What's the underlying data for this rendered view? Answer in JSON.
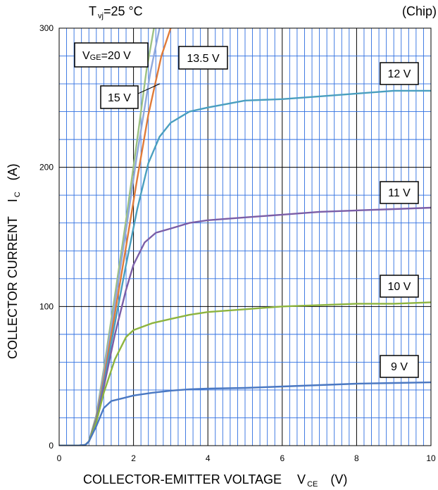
{
  "chart_data": {
    "type": "line",
    "title_left": "T vj =25 °C",
    "title_left_main": "T",
    "title_left_sub": "vj",
    "title_left_rest": "=25 °C",
    "title_right": "(Chip)",
    "xlabel": "COLLECTOR-EMITTER VOLTAGE",
    "xlabel_symbol": "V",
    "xlabel_symbol_sub": "CE",
    "xlabel_unit": "(V)",
    "ylabel": "COLLECTOR CURRENT",
    "ylabel_symbol": "I",
    "ylabel_symbol_sub": "C",
    "ylabel_unit": "(A)",
    "xlim": [
      0,
      10
    ],
    "ylim": [
      0,
      300
    ],
    "x_ticks": [
      "0",
      "2",
      "4",
      "6",
      "8",
      "10"
    ],
    "y_ticks": [
      "0",
      "100",
      "200",
      "300"
    ],
    "grid": true,
    "series": [
      {
        "name": "VGE=20 V",
        "color": "#9dc183",
        "points": [
          [
            0,
            0
          ],
          [
            0.5,
            0
          ],
          [
            0.7,
            0.5
          ],
          [
            0.8,
            3
          ],
          [
            1.0,
            22
          ],
          [
            1.2,
            55
          ],
          [
            1.5,
            108
          ],
          [
            1.8,
            162
          ],
          [
            2.1,
            220
          ],
          [
            2.35,
            270
          ],
          [
            2.55,
            300
          ]
        ]
      },
      {
        "name": "15 V",
        "color": "#8fa8dc",
        "points": [
          [
            0,
            0
          ],
          [
            0.5,
            0
          ],
          [
            0.7,
            0.5
          ],
          [
            0.8,
            3
          ],
          [
            1.0,
            21
          ],
          [
            1.2,
            52
          ],
          [
            1.5,
            102
          ],
          [
            1.8,
            155
          ],
          [
            2.1,
            210
          ],
          [
            2.45,
            268
          ],
          [
            2.7,
            300
          ]
        ]
      },
      {
        "name": "13.5 V",
        "color": "#e07b39",
        "points": [
          [
            0,
            0
          ],
          [
            0.5,
            0
          ],
          [
            0.7,
            0.5
          ],
          [
            0.8,
            3
          ],
          [
            1.0,
            20
          ],
          [
            1.2,
            48
          ],
          [
            1.5,
            95
          ],
          [
            1.8,
            143
          ],
          [
            2.1,
            192
          ],
          [
            2.4,
            238
          ],
          [
            2.75,
            280
          ],
          [
            3.0,
            300
          ]
        ]
      },
      {
        "name": "12 V",
        "color": "#4a9fbf",
        "points": [
          [
            0,
            0
          ],
          [
            0.5,
            0
          ],
          [
            0.7,
            0.5
          ],
          [
            0.8,
            3
          ],
          [
            1.0,
            19
          ],
          [
            1.2,
            45
          ],
          [
            1.5,
            88
          ],
          [
            1.8,
            130
          ],
          [
            2.1,
            170
          ],
          [
            2.4,
            203
          ],
          [
            2.7,
            222
          ],
          [
            3.0,
            232
          ],
          [
            3.5,
            240
          ],
          [
            4.0,
            243
          ],
          [
            5.0,
            248
          ],
          [
            6.0,
            249
          ],
          [
            7.0,
            251
          ],
          [
            8.0,
            253
          ],
          [
            9.0,
            255
          ],
          [
            10.0,
            255
          ]
        ]
      },
      {
        "name": "11 V",
        "color": "#7b5ea7",
        "points": [
          [
            0,
            0
          ],
          [
            0.5,
            0
          ],
          [
            0.7,
            0.5
          ],
          [
            0.8,
            3
          ],
          [
            1.0,
            18
          ],
          [
            1.2,
            42
          ],
          [
            1.5,
            80
          ],
          [
            1.8,
            112
          ],
          [
            2.0,
            130
          ],
          [
            2.3,
            146
          ],
          [
            2.6,
            153
          ],
          [
            3.0,
            156
          ],
          [
            3.5,
            160
          ],
          [
            4.0,
            162
          ],
          [
            5.0,
            164
          ],
          [
            6.0,
            166
          ],
          [
            7.0,
            168
          ],
          [
            8.0,
            169
          ],
          [
            9.0,
            170
          ],
          [
            10.0,
            171
          ]
        ]
      },
      {
        "name": "10 V",
        "color": "#8db43f",
        "points": [
          [
            0,
            0
          ],
          [
            0.5,
            0
          ],
          [
            0.7,
            0.5
          ],
          [
            0.8,
            3
          ],
          [
            1.0,
            17
          ],
          [
            1.2,
            38
          ],
          [
            1.5,
            62
          ],
          [
            1.8,
            78
          ],
          [
            2.0,
            83
          ],
          [
            2.5,
            88
          ],
          [
            3.0,
            91
          ],
          [
            3.5,
            94
          ],
          [
            4.0,
            96
          ],
          [
            5.0,
            98
          ],
          [
            6.0,
            100
          ],
          [
            7.0,
            101
          ],
          [
            8.0,
            102
          ],
          [
            9.0,
            102
          ],
          [
            10.0,
            103
          ]
        ]
      },
      {
        "name": "9 V",
        "color": "#4a78c2",
        "points": [
          [
            0,
            0
          ],
          [
            0.5,
            0
          ],
          [
            0.7,
            0.5
          ],
          [
            0.8,
            3
          ],
          [
            1.0,
            14
          ],
          [
            1.2,
            27
          ],
          [
            1.4,
            32
          ],
          [
            1.7,
            34
          ],
          [
            2.0,
            36
          ],
          [
            2.5,
            38
          ],
          [
            3.0,
            39.5
          ],
          [
            3.5,
            40.5
          ],
          [
            4.0,
            41
          ],
          [
            5.0,
            41.5
          ],
          [
            6.0,
            42.5
          ],
          [
            7.0,
            43.5
          ],
          [
            8.0,
            44.5
          ],
          [
            9.0,
            45
          ],
          [
            10.0,
            45.5
          ]
        ]
      }
    ],
    "annotations": [
      {
        "text_main": "V",
        "text_sub": "GE",
        "text_rest": "=20 V"
      },
      {
        "text": "15 V"
      },
      {
        "text": "13.5 V"
      },
      {
        "text": "12 V"
      },
      {
        "text": "11 V"
      },
      {
        "text": "10 V"
      },
      {
        "text": "9 V"
      }
    ]
  }
}
